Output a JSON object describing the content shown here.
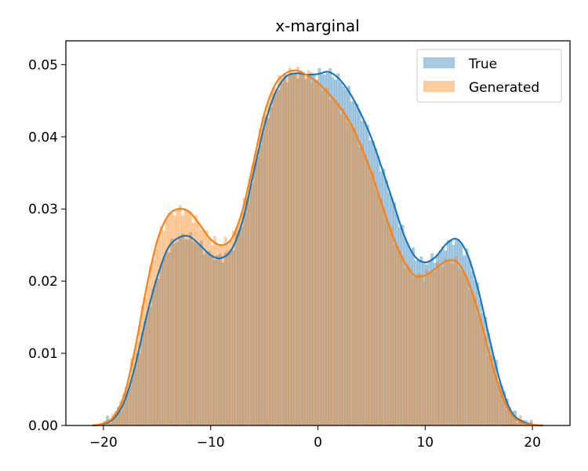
{
  "chart_data": {
    "type": "histogram",
    "title": "x-marginal",
    "xlabel": "",
    "ylabel": "",
    "xlim": [
      -23.5,
      23.5
    ],
    "ylim": [
      0,
      0.0533
    ],
    "xticks": [
      -20,
      -10,
      0,
      10,
      20
    ],
    "yticks": [
      0.0,
      0.01,
      0.02,
      0.03,
      0.04,
      0.05
    ],
    "ytick_labels": [
      "0.00",
      "0.01",
      "0.02",
      "0.03",
      "0.04",
      "0.05"
    ],
    "legend_position": "top-right",
    "grid": false,
    "x": [
      -21,
      -20,
      -19,
      -18,
      -17,
      -16,
      -15,
      -14,
      -13,
      -12,
      -11,
      -10,
      -9,
      -8,
      -7,
      -6,
      -5,
      -4,
      -3,
      -2,
      -1,
      0,
      1,
      2,
      3,
      4,
      5,
      6,
      7,
      8,
      9,
      10,
      11,
      12,
      13,
      14,
      15,
      16,
      17,
      18,
      19,
      20,
      21
    ],
    "series": [
      {
        "name": "True",
        "color": "#1f77b4",
        "hist_alpha": 0.4,
        "values": [
          0.0,
          0.0002,
          0.001,
          0.0035,
          0.0085,
          0.015,
          0.0205,
          0.0245,
          0.026,
          0.0262,
          0.025,
          0.0236,
          0.0232,
          0.0245,
          0.0285,
          0.035,
          0.0415,
          0.046,
          0.0483,
          0.0488,
          0.0486,
          0.0487,
          0.049,
          0.048,
          0.046,
          0.0432,
          0.0398,
          0.0355,
          0.031,
          0.0265,
          0.0235,
          0.0226,
          0.0234,
          0.0252,
          0.0258,
          0.0235,
          0.0185,
          0.012,
          0.006,
          0.002,
          0.0006,
          0.0001,
          0.0
        ]
      },
      {
        "name": "Generated",
        "color": "#ff7f0e",
        "hist_alpha": 0.4,
        "values": [
          0.0,
          0.0003,
          0.0013,
          0.0045,
          0.011,
          0.019,
          0.0255,
          0.029,
          0.03,
          0.0296,
          0.0278,
          0.0258,
          0.025,
          0.026,
          0.03,
          0.0365,
          0.0432,
          0.0472,
          0.0488,
          0.0492,
          0.0485,
          0.0475,
          0.046,
          0.0442,
          0.042,
          0.0388,
          0.035,
          0.0305,
          0.0262,
          0.0228,
          0.0208,
          0.0208,
          0.0218,
          0.0228,
          0.0226,
          0.02,
          0.0155,
          0.0098,
          0.0048,
          0.0016,
          0.0004,
          0.0001,
          0.0
        ]
      }
    ]
  }
}
